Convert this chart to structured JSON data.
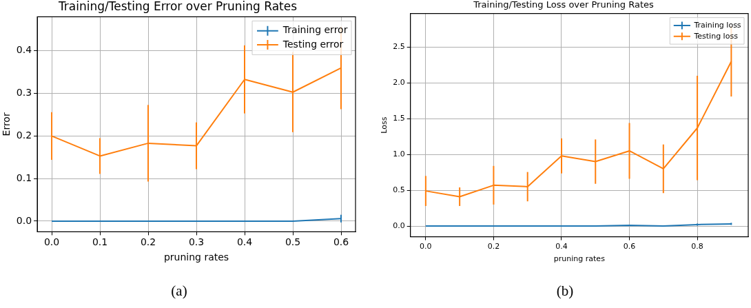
{
  "chart_data": [
    {
      "type": "line",
      "title": "Training/Testing Error over Pruning Rates",
      "xlabel": "pruning rates",
      "ylabel": "Error",
      "x": [
        0,
        0.1,
        0.2,
        0.3,
        0.4,
        0.5,
        0.6
      ],
      "series": [
        {
          "name": "Training error",
          "color": "#1f77b4",
          "values": [
            0,
            0,
            0,
            0,
            0,
            0,
            0.006
          ],
          "errors": [
            null,
            null,
            null,
            null,
            null,
            null,
            0.009
          ]
        },
        {
          "name": "Testing error",
          "color": "#ff7f0e",
          "values": [
            0.2,
            0.153,
            0.183,
            0.177,
            0.333,
            0.303,
            0.36
          ],
          "errors": [
            0.056,
            0.042,
            0.09,
            0.055,
            0.08,
            0.094,
            0.097
          ]
        }
      ],
      "xlim": [
        -0.03,
        0.63
      ],
      "xticks": [
        {
          "value": 0,
          "label": "0.0"
        },
        {
          "value": 0.1,
          "label": "0.1"
        },
        {
          "value": 0.2,
          "label": "0.2"
        },
        {
          "value": 0.3,
          "label": "0.3"
        },
        {
          "value": 0.4,
          "label": "0.4"
        },
        {
          "value": 0.5,
          "label": "0.5"
        },
        {
          "value": 0.6,
          "label": "0.6"
        }
      ],
      "ylim": [
        -0.025,
        0.48
      ],
      "yticks": [
        {
          "value": 0,
          "label": "0.0"
        },
        {
          "value": 0.1,
          "label": "0.1"
        },
        {
          "value": 0.2,
          "label": "0.2"
        },
        {
          "value": 0.3,
          "label": "0.3"
        },
        {
          "value": 0.4,
          "label": "0.4"
        }
      ],
      "grid": true,
      "legend": "top right",
      "marker": "none",
      "line_style": "solid",
      "annotations": [
        "(a)"
      ]
    },
    {
      "type": "line",
      "title": "Training/Testing Loss over Pruning Rates",
      "xlabel": "pruning rates",
      "ylabel": "Loss",
      "x": [
        0,
        0.1,
        0.2,
        0.3,
        0.4,
        0.5,
        0.6,
        0.7,
        0.8,
        0.9
      ],
      "series": [
        {
          "name": "Training loss",
          "color": "#1f77b4",
          "values": [
            0,
            0,
            0,
            0,
            0,
            0,
            0.01,
            0,
            0.02,
            0.03
          ],
          "errors": [
            null,
            null,
            null,
            null,
            null,
            null,
            null,
            null,
            0.015,
            0.015
          ]
        },
        {
          "name": "Testing loss",
          "color": "#ff7f0e",
          "values": [
            0.49,
            0.41,
            0.57,
            0.55,
            0.98,
            0.9,
            1.05,
            0.8,
            1.37,
            2.3
          ],
          "errors": [
            0.21,
            0.13,
            0.27,
            0.205,
            0.245,
            0.31,
            0.39,
            0.34,
            0.73,
            0.49
          ]
        }
      ],
      "xlim": [
        -0.045,
        0.95
      ],
      "xticks": [
        {
          "value": 0,
          "label": "0.0"
        },
        {
          "value": 0.2,
          "label": "0.2"
        },
        {
          "value": 0.4,
          "label": "0.4"
        },
        {
          "value": 0.6,
          "label": "0.6"
        },
        {
          "value": 0.8,
          "label": "0.8"
        }
      ],
      "ylim": [
        -0.15,
        2.97
      ],
      "yticks": [
        {
          "value": 0,
          "label": "0.0"
        },
        {
          "value": 0.5,
          "label": "0.5"
        },
        {
          "value": 1,
          "label": "1.0"
        },
        {
          "value": 1.5,
          "label": "1.5"
        },
        {
          "value": 2,
          "label": "2.0"
        },
        {
          "value": 2.5,
          "label": "2.5"
        }
      ],
      "grid": true,
      "legend": "top right",
      "marker": "none",
      "line_style": "solid",
      "annotations": [
        "(b)"
      ]
    }
  ]
}
